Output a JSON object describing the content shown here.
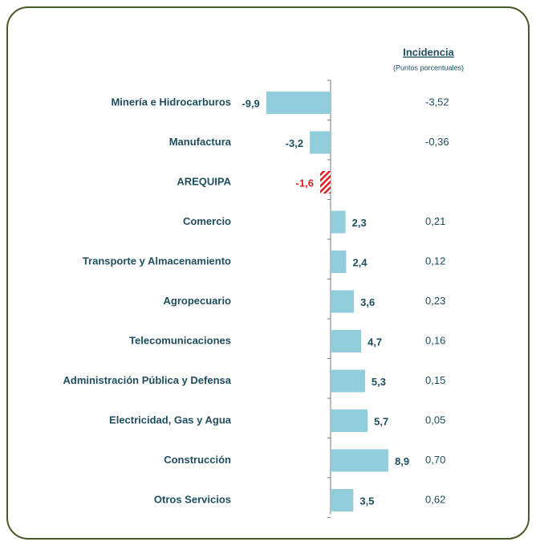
{
  "chart_data": {
    "type": "bar",
    "categories": [
      "Minería e Hidrocarburos",
      "Manufactura",
      "AREQUIPA",
      "Comercio",
      "Transporte y Almacenamiento",
      "Agropecuario",
      "Telecomunicaciones",
      "Administración Pública y Defensa",
      "Electricidad, Gas y Agua",
      "Construcción",
      "Otros Servicios"
    ],
    "values": [
      -9.9,
      -3.2,
      -1.6,
      2.3,
      2.4,
      3.6,
      4.7,
      5.3,
      5.7,
      8.9,
      3.5
    ],
    "value_labels": [
      "-9,9",
      "-3,2",
      "-1,6",
      "2,3",
      "2,4",
      "3,6",
      "4,7",
      "5,3",
      "5,7",
      "8,9",
      "3,5"
    ],
    "color": "#92cddc",
    "label_color": "#1f4e5f",
    "highlight_category": "AREQUIPA",
    "highlight_color": "#e31b23",
    "xlim": [
      -10,
      10
    ],
    "incidence": {
      "title": "Incidencia",
      "subtitle": "(Puntos porcentuales)",
      "values": [
        -3.52,
        -0.36,
        null,
        0.21,
        0.12,
        0.23,
        0.16,
        0.15,
        0.05,
        0.7,
        0.62
      ],
      "value_labels": [
        "-3,52",
        "-0,36",
        null,
        "0,21",
        "0,12",
        "0,23",
        "0,16",
        "0,15",
        "0,05",
        "0,70",
        "0,62"
      ]
    }
  }
}
